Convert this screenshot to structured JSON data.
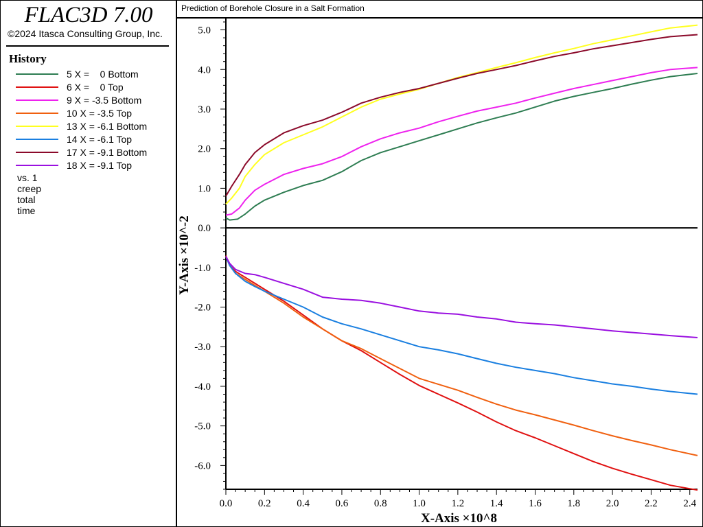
{
  "app": {
    "title": "FLAC3D 7.00",
    "copyright": "©2024 Itasca Consulting Group, Inc."
  },
  "legend": {
    "heading": "History",
    "items": [
      {
        "label": "5 X =    0 Bottom",
        "color": "#2e7d52"
      },
      {
        "label": "6 X =    0 Top",
        "color": "#e01010"
      },
      {
        "label": "9 X = -3.5 Bottom",
        "color": "#ee22ee"
      },
      {
        "label": "10 X = -3.5 Top",
        "color": "#f06010"
      },
      {
        "label": "13 X = -6.1 Bottom",
        "color": "#ffff20"
      },
      {
        "label": "14 X = -6.1 Top",
        "color": "#1a7fe0"
      },
      {
        "label": "17 X = -9.1 Bottom",
        "color": "#8b0a2a"
      },
      {
        "label": "18 X = -9.1 Top",
        "color": "#9a10e0"
      }
    ],
    "footer": "vs. 1 creep total time"
  },
  "chart_data": {
    "type": "line",
    "title": "Prediction of Borehole Closure in a Salt Formation",
    "xlabel": "X-Axis ×10^8",
    "ylabel": "Y-Axis ×10^-2",
    "xlim": [
      0,
      2.44
    ],
    "ylim": [
      -6.6,
      5.2
    ],
    "x_ticks": [
      0.0,
      0.2,
      0.4,
      0.6,
      0.8,
      1.0,
      1.2,
      1.4,
      1.6,
      1.8,
      2.0,
      2.2,
      2.4
    ],
    "x_tick_labels": [
      "0.0",
      "0.2",
      "0.4",
      "0.6",
      "0.8",
      "1.0",
      "1.2",
      "1.4",
      "1.6",
      "1.8",
      "2.0",
      "2.2",
      "2.4"
    ],
    "y_ticks": [
      5,
      4,
      3,
      2,
      1,
      0,
      -1,
      -2,
      -3,
      -4,
      -5,
      -6
    ],
    "y_tick_labels": [
      "5.0",
      "4.0",
      "3.0",
      "2.0",
      "1.0",
      "0.0",
      "-1.0",
      "-2.0",
      "-3.0",
      "-4.0",
      "-5.0",
      "-6.0"
    ],
    "grid": false,
    "zero_line": true,
    "series": [
      {
        "name": "5 X =    0 Bottom",
        "color": "#2e7d52",
        "points": [
          [
            0,
            0.25
          ],
          [
            0.02,
            0.2
          ],
          [
            0.06,
            0.22
          ],
          [
            0.1,
            0.35
          ],
          [
            0.15,
            0.55
          ],
          [
            0.2,
            0.7
          ],
          [
            0.3,
            0.9
          ],
          [
            0.4,
            1.07
          ],
          [
            0.5,
            1.2
          ],
          [
            0.6,
            1.42
          ],
          [
            0.7,
            1.7
          ],
          [
            0.8,
            1.9
          ],
          [
            0.9,
            2.05
          ],
          [
            1.0,
            2.2
          ],
          [
            1.1,
            2.35
          ],
          [
            1.2,
            2.5
          ],
          [
            1.3,
            2.65
          ],
          [
            1.4,
            2.78
          ],
          [
            1.5,
            2.9
          ],
          [
            1.6,
            3.05
          ],
          [
            1.7,
            3.2
          ],
          [
            1.8,
            3.32
          ],
          [
            1.9,
            3.42
          ],
          [
            2.0,
            3.52
          ],
          [
            2.1,
            3.63
          ],
          [
            2.2,
            3.73
          ],
          [
            2.3,
            3.82
          ],
          [
            2.44,
            3.9
          ]
        ]
      },
      {
        "name": "6 X =    0 Top",
        "color": "#e01010",
        "points": [
          [
            0,
            -0.7
          ],
          [
            0.02,
            -0.95
          ],
          [
            0.05,
            -1.1
          ],
          [
            0.1,
            -1.25
          ],
          [
            0.15,
            -1.4
          ],
          [
            0.2,
            -1.55
          ],
          [
            0.3,
            -1.85
          ],
          [
            0.4,
            -2.2
          ],
          [
            0.5,
            -2.55
          ],
          [
            0.6,
            -2.85
          ],
          [
            0.7,
            -3.1
          ],
          [
            0.8,
            -3.4
          ],
          [
            0.9,
            -3.7
          ],
          [
            1.0,
            -3.98
          ],
          [
            1.1,
            -4.2
          ],
          [
            1.2,
            -4.42
          ],
          [
            1.3,
            -4.65
          ],
          [
            1.4,
            -4.9
          ],
          [
            1.5,
            -5.12
          ],
          [
            1.6,
            -5.3
          ],
          [
            1.7,
            -5.5
          ],
          [
            1.8,
            -5.7
          ],
          [
            1.9,
            -5.9
          ],
          [
            2.0,
            -6.07
          ],
          [
            2.1,
            -6.22
          ],
          [
            2.2,
            -6.36
          ],
          [
            2.3,
            -6.5
          ],
          [
            2.44,
            -6.62
          ]
        ]
      },
      {
        "name": "9 X = -3.5 Bottom",
        "color": "#ee22ee",
        "points": [
          [
            0,
            0.32
          ],
          [
            0.03,
            0.35
          ],
          [
            0.07,
            0.5
          ],
          [
            0.1,
            0.7
          ],
          [
            0.15,
            0.95
          ],
          [
            0.2,
            1.1
          ],
          [
            0.3,
            1.35
          ],
          [
            0.4,
            1.5
          ],
          [
            0.5,
            1.62
          ],
          [
            0.6,
            1.8
          ],
          [
            0.7,
            2.05
          ],
          [
            0.8,
            2.25
          ],
          [
            0.9,
            2.4
          ],
          [
            1.0,
            2.52
          ],
          [
            1.1,
            2.68
          ],
          [
            1.2,
            2.82
          ],
          [
            1.3,
            2.95
          ],
          [
            1.4,
            3.05
          ],
          [
            1.5,
            3.15
          ],
          [
            1.6,
            3.28
          ],
          [
            1.7,
            3.4
          ],
          [
            1.8,
            3.52
          ],
          [
            1.9,
            3.62
          ],
          [
            2.0,
            3.72
          ],
          [
            2.1,
            3.82
          ],
          [
            2.2,
            3.92
          ],
          [
            2.3,
            4.0
          ],
          [
            2.44,
            4.05
          ]
        ]
      },
      {
        "name": "10 X = -3.5 Top",
        "color": "#f06010",
        "points": [
          [
            0,
            -0.72
          ],
          [
            0.02,
            -0.95
          ],
          [
            0.05,
            -1.15
          ],
          [
            0.1,
            -1.3
          ],
          [
            0.15,
            -1.45
          ],
          [
            0.2,
            -1.6
          ],
          [
            0.3,
            -1.9
          ],
          [
            0.4,
            -2.25
          ],
          [
            0.5,
            -2.55
          ],
          [
            0.6,
            -2.85
          ],
          [
            0.7,
            -3.05
          ],
          [
            0.8,
            -3.3
          ],
          [
            0.9,
            -3.55
          ],
          [
            1.0,
            -3.8
          ],
          [
            1.1,
            -3.95
          ],
          [
            1.2,
            -4.1
          ],
          [
            1.3,
            -4.28
          ],
          [
            1.4,
            -4.45
          ],
          [
            1.5,
            -4.6
          ],
          [
            1.6,
            -4.72
          ],
          [
            1.7,
            -4.85
          ],
          [
            1.8,
            -4.98
          ],
          [
            1.9,
            -5.12
          ],
          [
            2.0,
            -5.25
          ],
          [
            2.1,
            -5.37
          ],
          [
            2.2,
            -5.48
          ],
          [
            2.3,
            -5.6
          ],
          [
            2.44,
            -5.75
          ]
        ]
      },
      {
        "name": "13 X = -6.1 Bottom",
        "color": "#ffff20",
        "points": [
          [
            0,
            0.6
          ],
          [
            0.03,
            0.75
          ],
          [
            0.07,
            1.0
          ],
          [
            0.1,
            1.3
          ],
          [
            0.15,
            1.6
          ],
          [
            0.2,
            1.85
          ],
          [
            0.3,
            2.15
          ],
          [
            0.4,
            2.35
          ],
          [
            0.5,
            2.55
          ],
          [
            0.6,
            2.8
          ],
          [
            0.7,
            3.05
          ],
          [
            0.8,
            3.25
          ],
          [
            0.9,
            3.38
          ],
          [
            1.0,
            3.5
          ],
          [
            1.1,
            3.65
          ],
          [
            1.2,
            3.8
          ],
          [
            1.3,
            3.92
          ],
          [
            1.4,
            4.05
          ],
          [
            1.5,
            4.17
          ],
          [
            1.6,
            4.3
          ],
          [
            1.7,
            4.42
          ],
          [
            1.8,
            4.53
          ],
          [
            1.9,
            4.65
          ],
          [
            2.0,
            4.75
          ],
          [
            2.1,
            4.85
          ],
          [
            2.2,
            4.95
          ],
          [
            2.3,
            5.05
          ],
          [
            2.44,
            5.12
          ]
        ]
      },
      {
        "name": "14 X = -6.1 Top",
        "color": "#1a7fe0",
        "points": [
          [
            0,
            -0.72
          ],
          [
            0.02,
            -0.95
          ],
          [
            0.05,
            -1.15
          ],
          [
            0.1,
            -1.35
          ],
          [
            0.15,
            -1.48
          ],
          [
            0.2,
            -1.6
          ],
          [
            0.3,
            -1.8
          ],
          [
            0.4,
            -2.0
          ],
          [
            0.5,
            -2.25
          ],
          [
            0.6,
            -2.42
          ],
          [
            0.7,
            -2.55
          ],
          [
            0.8,
            -2.7
          ],
          [
            0.9,
            -2.85
          ],
          [
            1.0,
            -3.0
          ],
          [
            1.1,
            -3.08
          ],
          [
            1.2,
            -3.18
          ],
          [
            1.3,
            -3.3
          ],
          [
            1.4,
            -3.42
          ],
          [
            1.5,
            -3.52
          ],
          [
            1.6,
            -3.6
          ],
          [
            1.7,
            -3.68
          ],
          [
            1.8,
            -3.78
          ],
          [
            1.9,
            -3.86
          ],
          [
            2.0,
            -3.94
          ],
          [
            2.1,
            -4.0
          ],
          [
            2.2,
            -4.07
          ],
          [
            2.3,
            -4.13
          ],
          [
            2.44,
            -4.2
          ]
        ]
      },
      {
        "name": "17 X = -9.1 Bottom",
        "color": "#8b0a2a",
        "points": [
          [
            0,
            0.8
          ],
          [
            0.03,
            1.05
          ],
          [
            0.07,
            1.35
          ],
          [
            0.1,
            1.6
          ],
          [
            0.15,
            1.9
          ],
          [
            0.2,
            2.1
          ],
          [
            0.3,
            2.4
          ],
          [
            0.4,
            2.58
          ],
          [
            0.5,
            2.72
          ],
          [
            0.6,
            2.92
          ],
          [
            0.7,
            3.15
          ],
          [
            0.8,
            3.3
          ],
          [
            0.9,
            3.42
          ],
          [
            1.0,
            3.52
          ],
          [
            1.1,
            3.65
          ],
          [
            1.2,
            3.78
          ],
          [
            1.3,
            3.9
          ],
          [
            1.4,
            4.0
          ],
          [
            1.5,
            4.1
          ],
          [
            1.6,
            4.22
          ],
          [
            1.7,
            4.33
          ],
          [
            1.8,
            4.42
          ],
          [
            1.9,
            4.52
          ],
          [
            2.0,
            4.6
          ],
          [
            2.1,
            4.68
          ],
          [
            2.2,
            4.76
          ],
          [
            2.3,
            4.83
          ],
          [
            2.44,
            4.88
          ]
        ]
      },
      {
        "name": "18 X = -9.1 Top",
        "color": "#9a10e0",
        "points": [
          [
            0,
            -0.72
          ],
          [
            0.02,
            -0.9
          ],
          [
            0.05,
            -1.05
          ],
          [
            0.1,
            -1.15
          ],
          [
            0.15,
            -1.18
          ],
          [
            0.2,
            -1.25
          ],
          [
            0.3,
            -1.4
          ],
          [
            0.4,
            -1.55
          ],
          [
            0.5,
            -1.75
          ],
          [
            0.6,
            -1.8
          ],
          [
            0.7,
            -1.83
          ],
          [
            0.8,
            -1.9
          ],
          [
            0.9,
            -2.0
          ],
          [
            1.0,
            -2.1
          ],
          [
            1.1,
            -2.15
          ],
          [
            1.2,
            -2.18
          ],
          [
            1.3,
            -2.25
          ],
          [
            1.4,
            -2.3
          ],
          [
            1.5,
            -2.38
          ],
          [
            1.6,
            -2.42
          ],
          [
            1.7,
            -2.45
          ],
          [
            1.8,
            -2.5
          ],
          [
            1.9,
            -2.55
          ],
          [
            2.0,
            -2.6
          ],
          [
            2.1,
            -2.64
          ],
          [
            2.2,
            -2.68
          ],
          [
            2.3,
            -2.72
          ],
          [
            2.44,
            -2.77
          ]
        ]
      }
    ]
  }
}
